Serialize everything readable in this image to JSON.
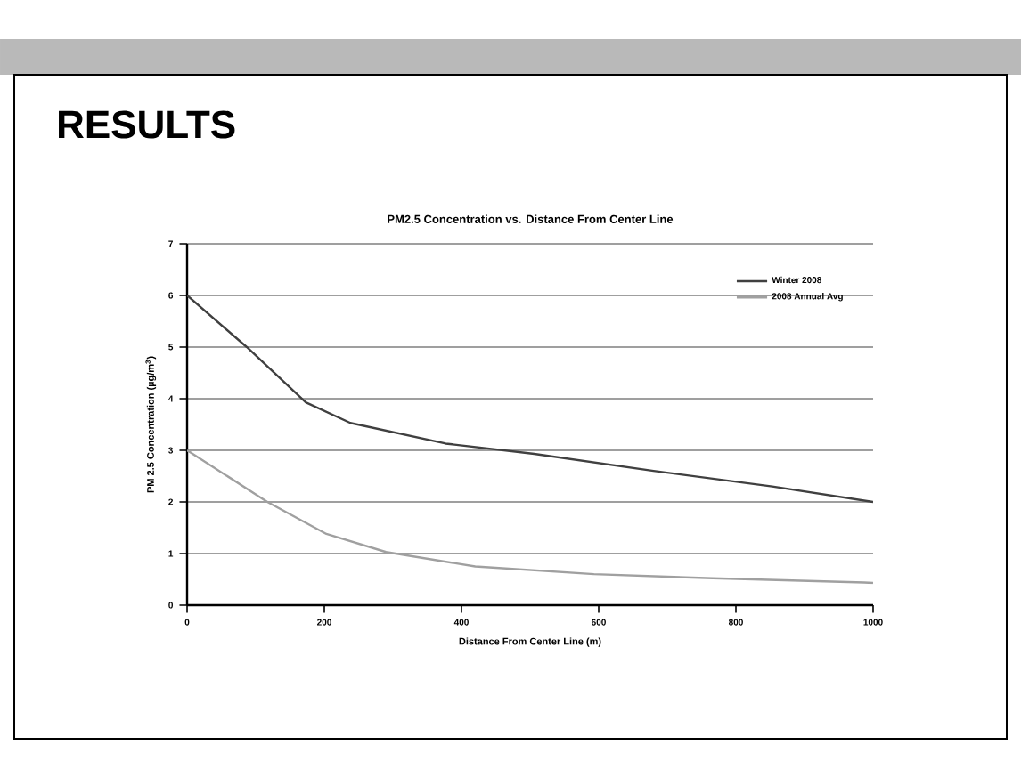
{
  "chart_data": {
    "type": "line",
    "title": "PM2.5 Concentration vs. Distance From Center Line",
    "annotations": [
      "RESULTS"
    ],
    "xlabel": "Distance From Center Line (m)",
    "ylabel": "PM 2.5 Concentration (µg/m$^{3}$)",
    "series": [
      {
        "name": "Winter 2008",
        "color": "#404040",
        "x": [
          0,
          87,
          173,
          238,
          377,
          506,
          680,
          853,
          1000
        ],
        "values": [
          6.0,
          5.0,
          3.93,
          3.53,
          3.13,
          2.93,
          2.6,
          2.3,
          2.0
        ]
      },
      {
        "name": "2008 Annual Avg",
        "color": "#a0a0a0",
        "x": [
          0,
          117,
          203,
          290,
          420,
          593,
          766,
          987,
          1000
        ],
        "values": [
          3.0,
          2.0,
          1.38,
          1.03,
          0.75,
          0.6,
          0.52,
          0.44,
          0.43
        ]
      }
    ],
    "xlim": [
      0,
      1000
    ],
    "ylim": [
      0,
      7
    ],
    "xticks": [
      0,
      200,
      400,
      600,
      800,
      1000
    ],
    "yticks": [
      0,
      1,
      2,
      3,
      4,
      5,
      6,
      7
    ],
    "grid": "y",
    "legend": "top right",
    "marker": "none",
    "line_style": "solid"
  }
}
